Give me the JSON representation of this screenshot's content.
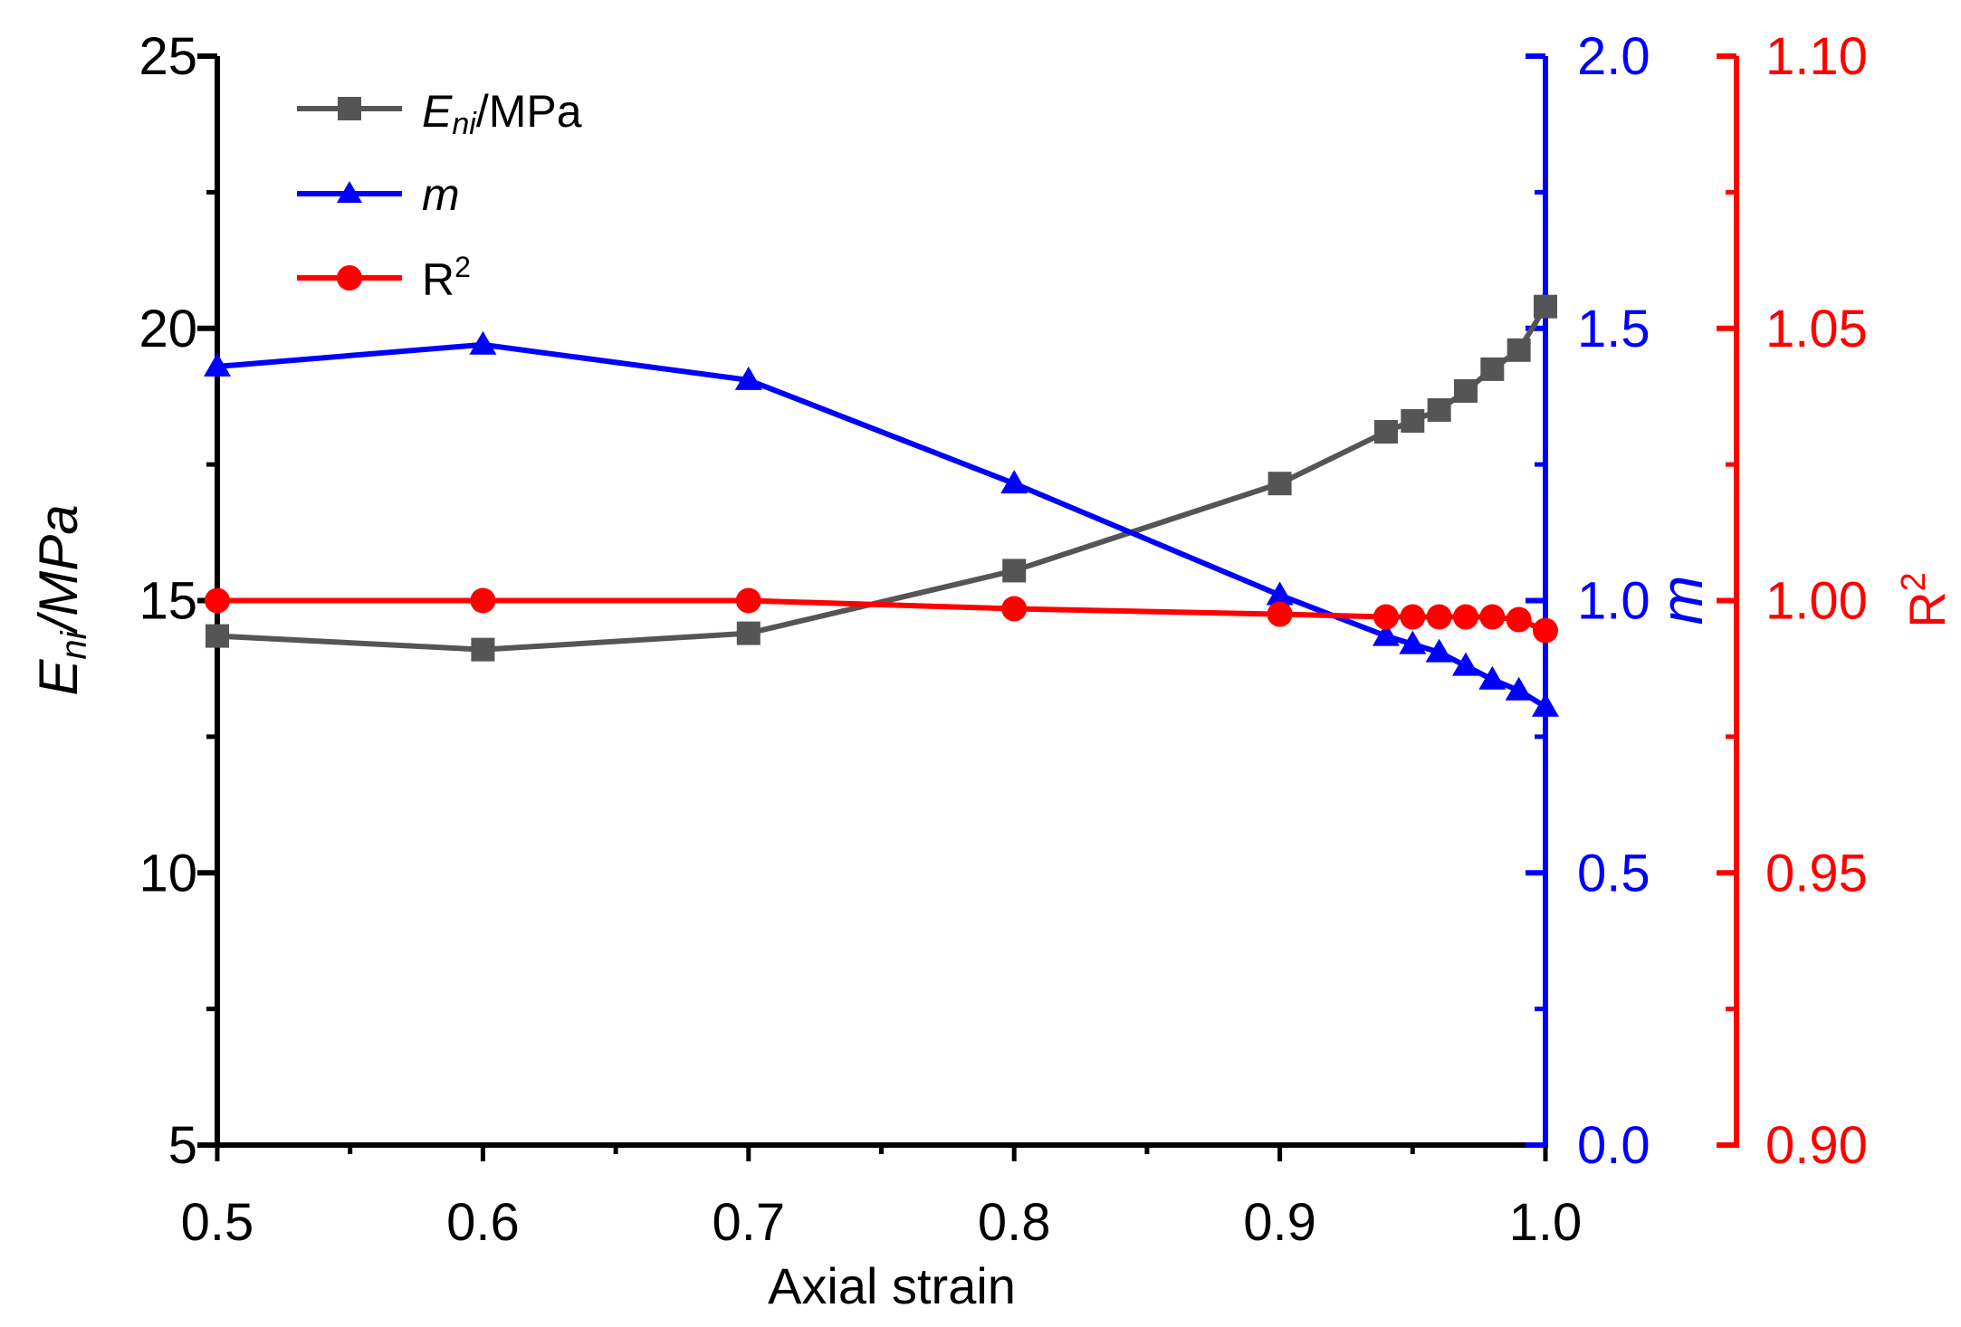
{
  "colors": {
    "eni": "#555555",
    "m": "#0000ff",
    "r2": "#ff0000",
    "axis_left": "#000000"
  },
  "chart_data": {
    "type": "line",
    "xlabel": "Axial strain",
    "xlim": [
      0.5,
      1.0
    ],
    "x_ticks": [
      "0.5",
      "0.6",
      "0.7",
      "0.8",
      "0.9",
      "1.0"
    ],
    "x": [
      0.5,
      0.6,
      0.7,
      0.8,
      0.9,
      0.94,
      0.95,
      0.96,
      0.97,
      0.98,
      0.99,
      1.0
    ],
    "axes": {
      "left": {
        "label_main": "E",
        "label_sub": "ni",
        "label_rest": "/MPa",
        "ylim": [
          5,
          25
        ],
        "ticks": [
          "5",
          "10",
          "15",
          "20",
          "25"
        ]
      },
      "m": {
        "label": "m",
        "ylim": [
          0.0,
          2.0
        ],
        "ticks": [
          "0.0",
          "0.5",
          "1.0",
          "1.5",
          "2.0"
        ]
      },
      "r2": {
        "label": "R",
        "label_sup": "2",
        "ylim": [
          0.9,
          1.1
        ],
        "ticks": [
          "0.90",
          "0.95",
          "1.00",
          "1.05",
          "1.10"
        ]
      }
    },
    "series": [
      {
        "name": "Eni/MPa",
        "legend_main": "E",
        "legend_sub": "ni",
        "legend_rest": "/MPa",
        "axis": "left",
        "marker": "square",
        "values": [
          14.35,
          14.1,
          14.4,
          15.55,
          17.15,
          18.1,
          18.3,
          18.5,
          18.85,
          19.25,
          19.6,
          20.4
        ]
      },
      {
        "name": "m",
        "legend_main": "m",
        "axis": "m",
        "marker": "triangle",
        "values": [
          1.43,
          1.47,
          1.405,
          1.215,
          1.01,
          0.935,
          0.92,
          0.905,
          0.88,
          0.855,
          0.835,
          0.805
        ]
      },
      {
        "name": "R2",
        "legend_main": "R",
        "legend_sup": "2",
        "axis": "r2",
        "marker": "circle",
        "values": [
          1.0,
          1.0,
          1.0,
          0.9985,
          0.9975,
          0.997,
          0.997,
          0.997,
          0.997,
          0.997,
          0.9965,
          0.9945
        ]
      }
    ]
  }
}
